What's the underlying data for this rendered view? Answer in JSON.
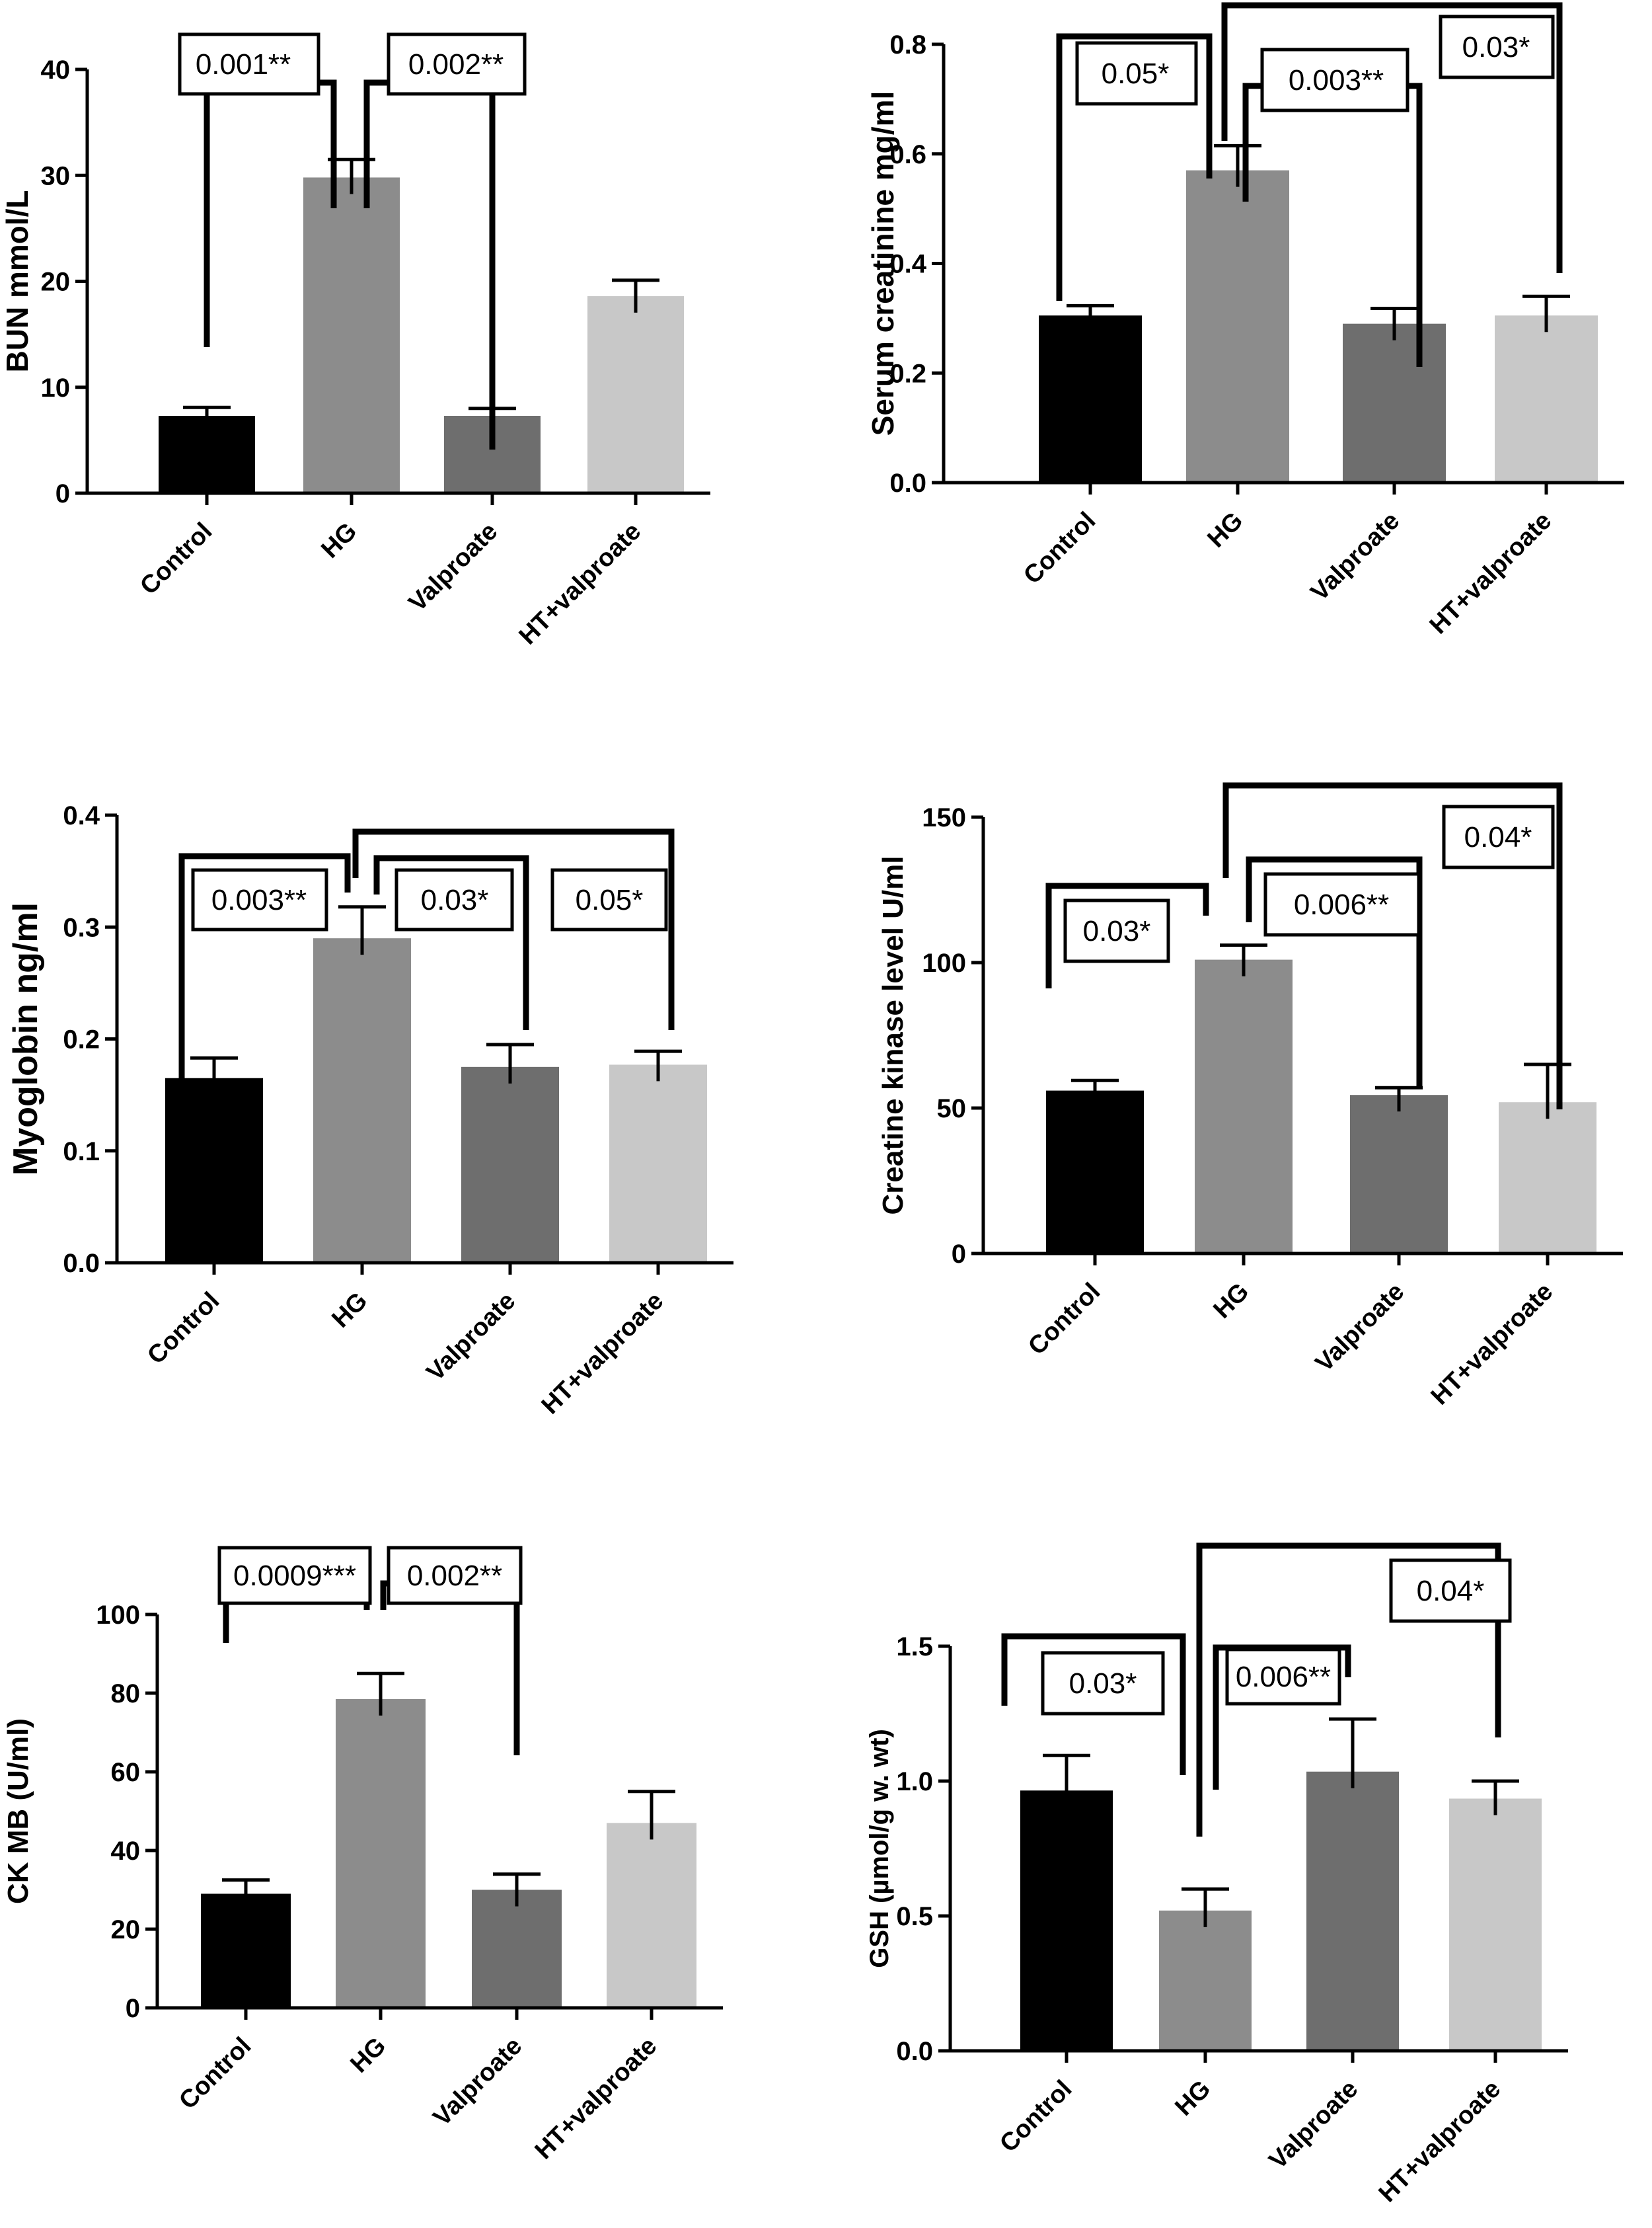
{
  "colors": {
    "bar_fills": [
      "#000000",
      "#8c8c8c",
      "#6e6e6e",
      "#c8c8c8"
    ],
    "axis": "#000000"
  },
  "chart_data": [
    {
      "type": "bar",
      "ylabel": "BUN mmol/L",
      "categories": [
        "Control",
        "HG",
        "Valproate",
        "HT+valproate"
      ],
      "values": [
        7.3,
        29.8,
        7.3,
        18.6
      ],
      "errors": [
        0.8,
        1.7,
        0.7,
        1.5
      ],
      "ylim": [
        0,
        40
      ],
      "yticks": [
        "0",
        "10",
        "20",
        "30",
        "40"
      ],
      "significance": [
        {
          "label": "0.001**",
          "between": [
            "Control",
            "HG"
          ]
        },
        {
          "label": "0.002**",
          "between": [
            "HG",
            "Valproate"
          ]
        }
      ]
    },
    {
      "type": "bar",
      "ylabel": "Serum creatinine mg/ml",
      "categories": [
        "Control",
        "HG",
        "Valproate",
        "HT+valproate"
      ],
      "values": [
        0.305,
        0.57,
        0.29,
        0.305
      ],
      "errors": [
        0.018,
        0.045,
        0.028,
        0.035
      ],
      "ylim": [
        0,
        0.8
      ],
      "yticks": [
        "0.0",
        "0.2",
        "0.4",
        "0.6",
        "0.8"
      ],
      "significance": [
        {
          "label": "0.05*",
          "between": [
            "Control",
            "HG"
          ]
        },
        {
          "label": "0.003**",
          "between": [
            "HG",
            "Valproate"
          ]
        },
        {
          "label": "0.03*",
          "between": [
            "HG",
            "HT+valproate"
          ]
        }
      ]
    },
    {
      "type": "bar",
      "ylabel": "Myoglobin ng/ml",
      "categories": [
        "Control",
        "HG",
        "Valproate",
        "HT+valproate"
      ],
      "values": [
        0.165,
        0.29,
        0.175,
        0.177
      ],
      "errors": [
        0.018,
        0.028,
        0.02,
        0.012
      ],
      "ylim": [
        0,
        0.4
      ],
      "yticks": [
        "0.0",
        "0.1",
        "0.2",
        "0.3",
        "0.4"
      ],
      "significance": [
        {
          "label": "0.003**",
          "between": [
            "Control",
            "HG"
          ]
        },
        {
          "label": "0.03*",
          "between": [
            "HG",
            "Valproate"
          ]
        },
        {
          "label": "0.05*",
          "between": [
            "HG",
            "HT+valproate"
          ]
        }
      ]
    },
    {
      "type": "bar",
      "ylabel": "Creatine kinase level U/ml",
      "categories": [
        "Control",
        "HG",
        "Valproate",
        "HT+valproate"
      ],
      "values": [
        56,
        101,
        54.5,
        52
      ],
      "errors": [
        3.5,
        5,
        2.5,
        13
      ],
      "ylim": [
        0,
        150
      ],
      "yticks": [
        "0",
        "50",
        "100",
        "150"
      ],
      "significance": [
        {
          "label": "0.03*",
          "between": [
            "Control",
            "HG"
          ]
        },
        {
          "label": "0.006**",
          "between": [
            "HG",
            "Valproate"
          ]
        },
        {
          "label": "0.04*",
          "between": [
            "HG",
            "HT+valproate"
          ]
        }
      ]
    },
    {
      "type": "bar",
      "ylabel": "CK MB (U/ml)",
      "categories": [
        "Control",
        "HG",
        "Valproate",
        "HT+valproate"
      ],
      "values": [
        29,
        78.5,
        30,
        47
      ],
      "errors": [
        3.5,
        6.5,
        4,
        8
      ],
      "ylim": [
        0,
        100
      ],
      "yticks": [
        "0",
        "20",
        "40",
        "60",
        "80",
        "100"
      ],
      "significance": [
        {
          "label": "0.0009***",
          "between": [
            "Control",
            "HG"
          ]
        },
        {
          "label": "0.002**",
          "between": [
            "HG",
            "Valproate"
          ]
        }
      ]
    },
    {
      "type": "bar",
      "ylabel": "GSH (µmol/g w. wt)",
      "categories": [
        "Control",
        "HG",
        "Valproate",
        "HT+valproate"
      ],
      "values": [
        0.965,
        0.52,
        1.035,
        0.935
      ],
      "errors": [
        0.13,
        0.08,
        0.195,
        0.065
      ],
      "ylim": [
        0,
        1.5
      ],
      "yticks": [
        "0.0",
        "0.5",
        "1.0",
        "1.5"
      ],
      "significance": [
        {
          "label": "0.03*",
          "between": [
            "Control",
            "HG"
          ]
        },
        {
          "label": "0.006**",
          "between": [
            "HG",
            "Valproate"
          ]
        },
        {
          "label": "0.04*",
          "between": [
            "HG",
            "HT+valproate"
          ]
        }
      ]
    }
  ]
}
